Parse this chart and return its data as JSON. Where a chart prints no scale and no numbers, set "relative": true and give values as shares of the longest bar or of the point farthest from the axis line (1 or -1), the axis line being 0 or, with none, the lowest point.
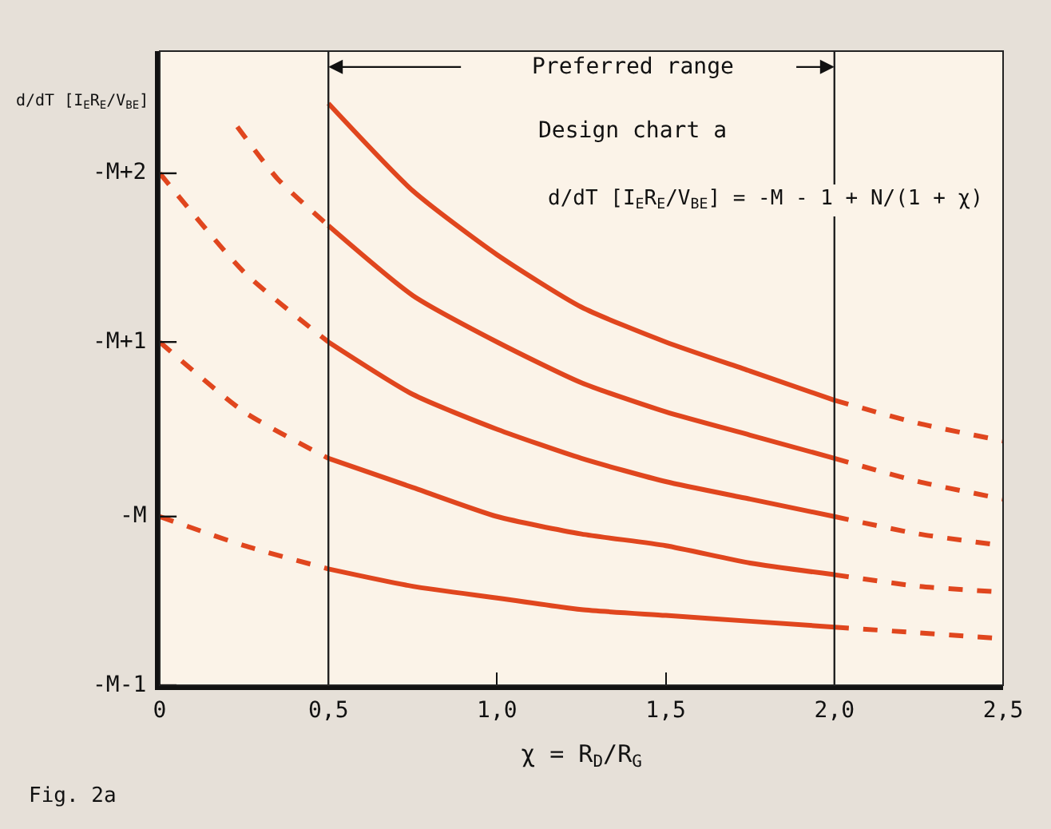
{
  "chart_data": {
    "type": "line",
    "title": "Design chart a",
    "xlabel": "χ = R$_{D}$/R$_{G}$",
    "ylabel": "d/dT [I$_{E}$R$_{E}$/V$_{BE}$]",
    "xlim": [
      0,
      2.5
    ],
    "xticks": [
      0,
      {
        "value": 0.5,
        "label": "0,5"
      },
      {
        "value": 1.0,
        "label": "1,0"
      },
      {
        "value": 1.5,
        "label": "1,5"
      },
      {
        "value": 2.0,
        "label": "2,0"
      },
      {
        "value": 2.5,
        "label": "2,5"
      }
    ],
    "relative": true,
    "grid": false,
    "marker": "none",
    "series": [
      {
        "color": "#e0461e",
        "line_style": "dashed",
        "x": [
          0,
          0.25,
          0.5
        ],
        "values": [
          0.29,
          0.24,
          0.2
        ]
      },
      {
        "color": "#e0461e",
        "line_style": "solid",
        "x": [
          0.5,
          0.75,
          1.0,
          1.25,
          1.5,
          1.75,
          2.0
        ],
        "values": [
          0.2,
          0.17,
          0.15,
          0.13,
          0.12,
          0.11,
          0.1
        ]
      },
      {
        "color": "#e0461e",
        "line_style": "dashed",
        "x": [
          2.0,
          2.25,
          2.5
        ],
        "values": [
          0.1,
          0.09,
          0.08
        ]
      },
      {
        "color": "#e0461e",
        "line_style": "dashed",
        "x": [
          0,
          0.25,
          0.5
        ],
        "values": [
          0.59,
          0.47,
          0.39
        ]
      },
      {
        "color": "#e0461e",
        "line_style": "solid",
        "x": [
          0.5,
          0.75,
          1.0,
          1.25,
          1.5,
          1.75,
          2.0
        ],
        "values": [
          0.39,
          0.34,
          0.29,
          0.26,
          0.24,
          0.21,
          0.19
        ]
      },
      {
        "color": "#e0461e",
        "line_style": "dashed",
        "x": [
          2.0,
          2.25,
          2.5
        ],
        "values": [
          0.19,
          0.17,
          0.16
        ]
      },
      {
        "color": "#e0461e",
        "line_style": "dashed",
        "x": [
          0,
          0.25,
          0.5
        ],
        "values": [
          0.88,
          0.71,
          0.59
        ]
      },
      {
        "color": "#e0461e",
        "line_style": "solid",
        "x": [
          0.5,
          0.75,
          1.0,
          1.25,
          1.5,
          1.75,
          2.0
        ],
        "values": [
          0.59,
          0.5,
          0.44,
          0.39,
          0.35,
          0.32,
          0.29
        ]
      },
      {
        "color": "#e0461e",
        "line_style": "dashed",
        "x": [
          2.0,
          2.25,
          2.5
        ],
        "values": [
          0.29,
          0.26,
          0.24
        ]
      },
      {
        "color": "#e0461e",
        "line_style": "dashed",
        "x": [
          0.23,
          0.35,
          0.5
        ],
        "values": [
          0.96,
          0.87,
          0.79
        ]
      },
      {
        "color": "#e0461e",
        "line_style": "solid",
        "x": [
          0.5,
          0.75,
          1.0,
          1.25,
          1.5,
          1.75,
          2.0
        ],
        "values": [
          0.79,
          0.67,
          0.59,
          0.52,
          0.47,
          0.43,
          0.39
        ]
      },
      {
        "color": "#e0461e",
        "line_style": "dashed",
        "x": [
          2.0,
          2.25,
          2.5
        ],
        "values": [
          0.39,
          0.35,
          0.32
        ]
      },
      {
        "color": "#e0461e",
        "line_style": "solid",
        "x": [
          0.5,
          0.75,
          1.0,
          1.25,
          1.5,
          1.75,
          2.0
        ],
        "values": [
          1,
          0.85,
          0.74,
          0.65,
          0.59,
          0.54,
          0.49
        ]
      },
      {
        "color": "#e0461e",
        "line_style": "dashed",
        "x": [
          2.0,
          2.25,
          2.5
        ],
        "values": [
          0.49,
          0.45,
          0.42
        ]
      }
    ],
    "ref_lines": [
      {
        "axis": "x",
        "value": 0.5,
        "color": "#222222"
      },
      {
        "axis": "x",
        "value": 2.0,
        "color": "#222222"
      }
    ],
    "annotations": [
      "Preferred range",
      "d/dT [I$_{E}$R$_{E}$/V$_{BE}$] = -M - 1 + N/(1 + χ)",
      "Fig. 2a",
      "-M-1",
      "-M",
      "-M+1",
      "-M+2"
    ]
  }
}
